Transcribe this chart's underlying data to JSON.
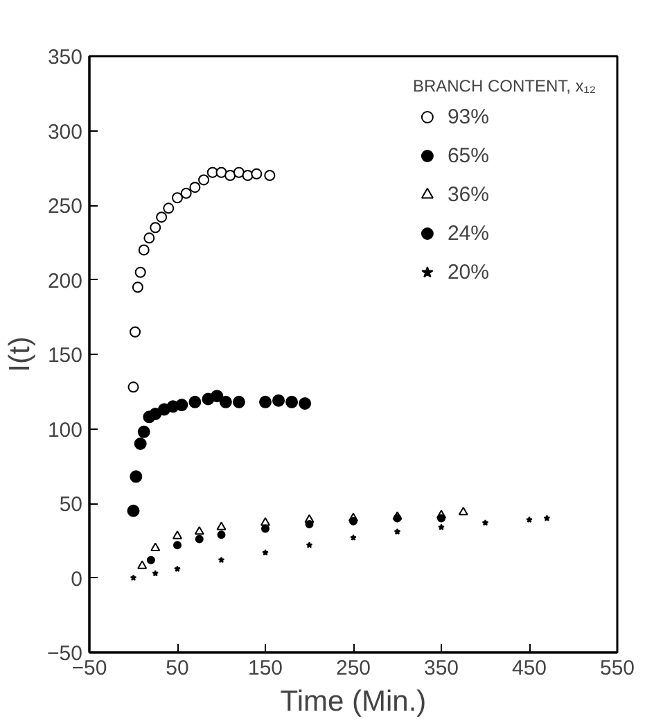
{
  "chart_data": {
    "type": "scatter",
    "xlabel": "Time (Min.)",
    "ylabel": "I(t)",
    "legend_title": "BRANCH CONTENT, x₁₂",
    "legend": "top right",
    "grid": false,
    "xlim": [
      -50,
      550
    ],
    "xticks": [
      -50,
      50,
      150,
      250,
      350,
      450,
      550
    ],
    "ylim": [
      -50,
      350
    ],
    "yticks": [
      -50,
      0,
      50,
      100,
      150,
      200,
      250,
      300,
      350
    ],
    "series": [
      {
        "name": "93%",
        "color": "#000000",
        "marker": "circle",
        "x": [
          0,
          2,
          5,
          8,
          12,
          18,
          25,
          32,
          40,
          50,
          60,
          70,
          80,
          90,
          100,
          110,
          120,
          130,
          140,
          155
        ],
        "values": [
          128,
          165,
          195,
          205,
          220,
          228,
          235,
          242,
          248,
          255,
          258,
          262,
          267,
          272,
          272,
          270,
          272,
          270,
          271,
          270
        ]
      },
      {
        "name": "65%",
        "color": "#000000",
        "marker": "circle",
        "x": [
          0,
          3,
          8,
          12,
          18,
          25,
          35,
          45,
          55,
          70,
          85,
          95,
          105,
          120,
          150,
          165,
          180,
          195
        ],
        "values": [
          45,
          68,
          90,
          98,
          108,
          110,
          113,
          115,
          116,
          118,
          120,
          122,
          118,
          118,
          118,
          119,
          118,
          117
        ]
      },
      {
        "name": "36%",
        "color": "#000000",
        "marker": "triangle",
        "x": [
          10,
          25,
          50,
          75,
          100,
          150,
          200,
          250,
          300,
          350,
          375
        ],
        "values": [
          8,
          20,
          28,
          31,
          34,
          37,
          39,
          40,
          41,
          42,
          44
        ]
      },
      {
        "name": "24%",
        "color": "#000000",
        "marker": "circle",
        "x": [
          20,
          50,
          75,
          100,
          150,
          200,
          250,
          300,
          350
        ],
        "values": [
          12,
          22,
          26,
          29,
          33,
          36,
          38,
          40,
          40
        ]
      },
      {
        "name": "20%",
        "color": "#000000",
        "marker": "star",
        "x": [
          0,
          25,
          50,
          100,
          150,
          200,
          250,
          300,
          350,
          400,
          450,
          470
        ],
        "values": [
          0,
          3,
          6,
          12,
          17,
          22,
          27,
          31,
          34,
          37,
          39,
          40
        ]
      }
    ]
  }
}
